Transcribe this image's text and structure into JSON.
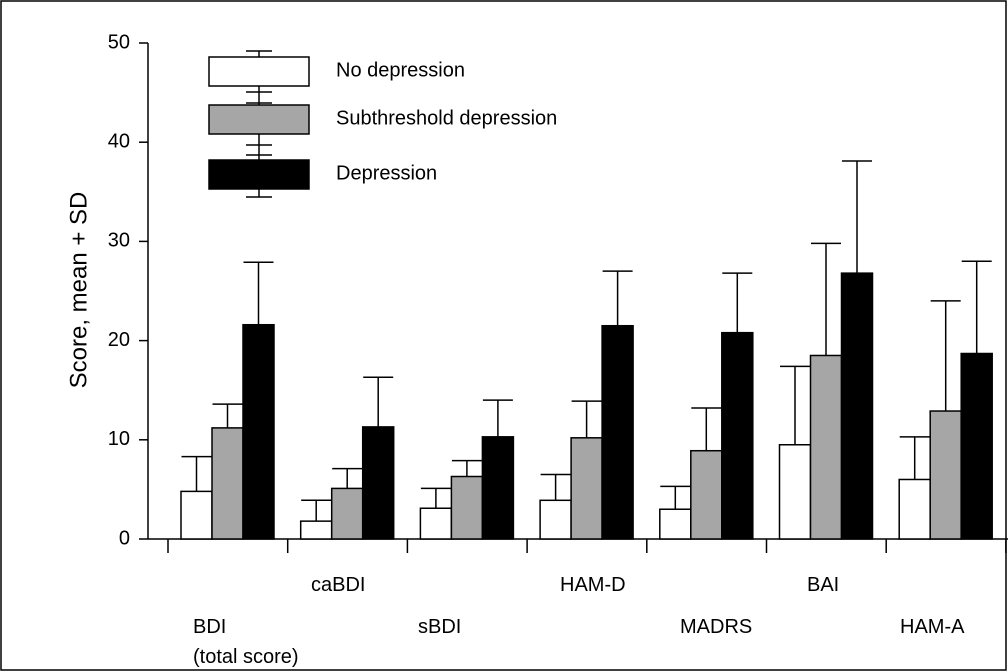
{
  "chart_data": {
    "type": "bar",
    "ylabel": "Score, mean + SD",
    "categories": [
      "BDI\n(total score)",
      "caBDI",
      "sBDI",
      "HAM-D",
      "MADRS",
      "BAI",
      "HAM-A"
    ],
    "series": [
      {
        "name": "No depression",
        "color": "#ffffff",
        "values": [
          4.8,
          1.8,
          3.1,
          3.9,
          3.0,
          9.5,
          6.0
        ],
        "errors": [
          3.5,
          2.1,
          2.0,
          2.6,
          2.3,
          7.9,
          4.3
        ]
      },
      {
        "name": "Subthreshold depression",
        "color": "#a6a6a6",
        "values": [
          11.2,
          5.1,
          6.3,
          10.2,
          8.9,
          18.5,
          12.9
        ],
        "errors": [
          2.4,
          2.0,
          1.6,
          3.7,
          4.3,
          11.3,
          11.1
        ]
      },
      {
        "name": "Depression",
        "color": "#000000",
        "values": [
          21.6,
          11.3,
          10.3,
          21.5,
          20.8,
          26.8,
          18.7
        ],
        "errors": [
          6.3,
          5.0,
          3.7,
          5.5,
          6.0,
          11.3,
          9.3
        ]
      }
    ],
    "ylim": [
      0,
      50
    ],
    "yticks": [
      0,
      10,
      20,
      30,
      40,
      50
    ]
  }
}
